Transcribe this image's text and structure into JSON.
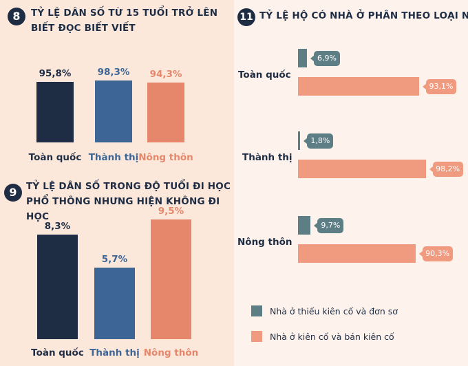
{
  "colors": {
    "dark": "#1f2d44",
    "blue": "#3d6696",
    "salmon": "#e6876c",
    "teal": "#5e7e85",
    "pink": "#f09a80"
  },
  "section8": {
    "number": "8",
    "title_line1": "TỶ LỆ DÂN SỐ TỪ 15 TUỔI TRỞ LÊN",
    "title_line2": "BIẾT ĐỌC BIẾT VIẾT"
  },
  "section9": {
    "number": "9",
    "title_line1": "TỶ LỆ DÂN SỐ TRONG ĐỘ TUỔI ĐI HỌC",
    "title_line2": "PHỔ THÔNG NHƯNG HIỆN KHÔNG ĐI HỌC"
  },
  "section11": {
    "number": "11",
    "title": "TỶ LỆ HỘ CÓ NHÀ Ở PHÂN THEO LOẠI NHÀ"
  },
  "chart_data": [
    {
      "type": "bar",
      "title": "TỶ LỆ DÂN SỐ TỪ 15 TUỔI TRỞ LÊN BIẾT ĐỌC BIẾT VIẾT",
      "categories": [
        "Toàn quốc",
        "Thành thị",
        "Nông thôn"
      ],
      "values": [
        95.8,
        98.3,
        94.3
      ],
      "value_labels": [
        "95,8%",
        "98,3%",
        "94,3%"
      ],
      "unit": "%"
    },
    {
      "type": "bar",
      "title": "TỶ LỆ DÂN SỐ TRONG ĐỘ TUỔI ĐI HỌC PHỔ THÔNG NHƯNG HIỆN KHÔNG ĐI HỌC",
      "categories": [
        "Toàn quốc",
        "Thành thị",
        "Nông thôn"
      ],
      "values": [
        8.3,
        5.7,
        9.5
      ],
      "value_labels": [
        "8,3%",
        "5,7%",
        "9,5%"
      ],
      "unit": "%"
    },
    {
      "type": "bar",
      "orientation": "horizontal",
      "title": "TỶ LỆ HỘ CÓ NHÀ Ở PHÂN THEO LOẠI NHÀ",
      "categories": [
        "Toàn quốc",
        "Thành thị",
        "Nông thôn"
      ],
      "series": [
        {
          "name": "Nhà ở thiếu kiên cố và đơn sơ",
          "values": [
            6.9,
            1.8,
            9.7
          ],
          "value_labels": [
            "6,9%",
            "1,8%",
            "9,7%"
          ]
        },
        {
          "name": "Nhà ở kiên cố và bán kiên cố",
          "values": [
            93.1,
            98.2,
            90.3
          ],
          "value_labels": [
            "93,1%",
            "98,2%",
            "90,3%"
          ]
        }
      ],
      "legend": "bottom",
      "unit": "%"
    }
  ]
}
